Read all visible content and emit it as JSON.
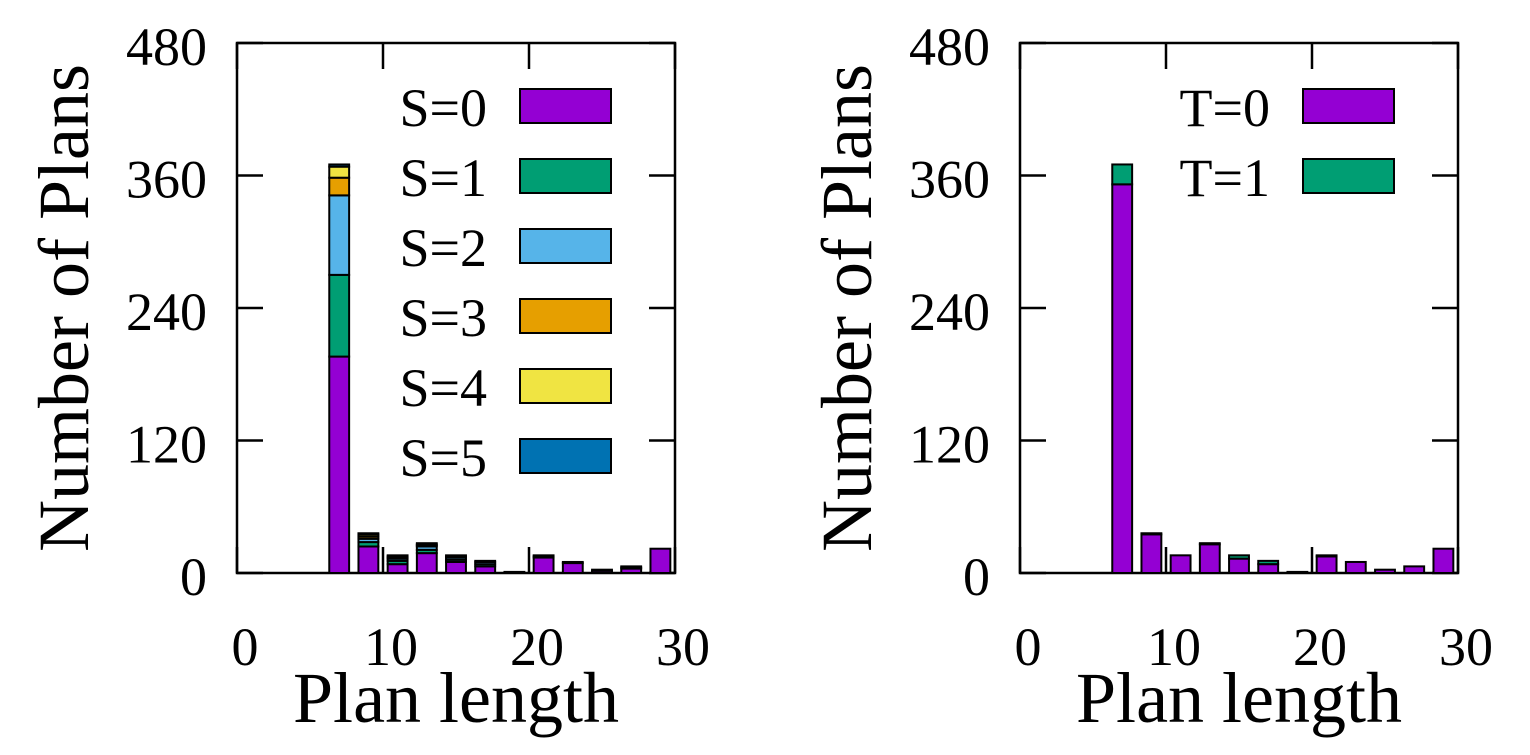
{
  "figure": {
    "colors": {
      "purple": "#9400d3",
      "green": "#009e73",
      "skyblue": "#56b4e9",
      "orange": "#e69f00",
      "yellow": "#f0e442",
      "blue": "#0072b2"
    }
  },
  "chart_data": [
    {
      "type": "bar",
      "stacked": true,
      "xlabel": "Plan length",
      "ylabel": "Number of Plans",
      "xlim": [
        0,
        30
      ],
      "ylim": [
        0,
        480
      ],
      "xticks": [
        0,
        10,
        20,
        30
      ],
      "yticks": [
        0,
        120,
        240,
        360,
        480
      ],
      "grid": false,
      "legend_position": "top-right",
      "x": [
        7,
        9,
        11,
        13,
        15,
        17,
        19,
        21,
        23,
        25,
        27,
        29
      ],
      "series": [
        {
          "name": "S=0",
          "color": "#9400d3",
          "values": [
            196,
            24,
            8,
            18,
            10,
            6,
            1,
            14,
            9,
            2,
            4,
            22
          ]
        },
        {
          "name": "S=1",
          "color": "#009e73",
          "values": [
            74,
            4,
            3,
            3,
            2,
            2,
            0,
            1,
            1,
            0,
            1,
            0
          ]
        },
        {
          "name": "S=2",
          "color": "#56b4e9",
          "values": [
            72,
            3,
            2,
            3,
            2,
            2,
            0,
            1,
            0,
            0,
            0,
            0
          ]
        },
        {
          "name": "S=3",
          "color": "#e69f00",
          "values": [
            16,
            2,
            1,
            1,
            1,
            0,
            0,
            0,
            0,
            0,
            0,
            0
          ]
        },
        {
          "name": "S=4",
          "color": "#f0e442",
          "values": [
            10,
            2,
            1,
            1,
            1,
            1,
            0,
            0,
            0,
            0,
            0,
            0
          ]
        },
        {
          "name": "S=5",
          "color": "#0072b2",
          "values": [
            2,
            1,
            1,
            1,
            0,
            0,
            0,
            0,
            0,
            1,
            1,
            0
          ]
        }
      ]
    },
    {
      "type": "bar",
      "stacked": true,
      "xlabel": "Plan length",
      "ylabel": "Number of Plans",
      "xlim": [
        0,
        30
      ],
      "ylim": [
        0,
        480
      ],
      "xticks": [
        0,
        10,
        20,
        30
      ],
      "yticks": [
        0,
        120,
        240,
        360,
        480
      ],
      "grid": false,
      "legend_position": "top-right",
      "x": [
        7,
        9,
        11,
        13,
        15,
        17,
        19,
        21,
        23,
        25,
        27,
        29
      ],
      "series": [
        {
          "name": "T=0",
          "color": "#9400d3",
          "values": [
            352,
            35,
            16,
            26,
            13,
            8,
            1,
            15,
            10,
            3,
            6,
            22
          ]
        },
        {
          "name": "T=1",
          "color": "#009e73",
          "values": [
            18,
            1,
            0,
            1,
            3,
            3,
            0,
            1,
            0,
            0,
            0,
            0
          ]
        }
      ]
    }
  ]
}
